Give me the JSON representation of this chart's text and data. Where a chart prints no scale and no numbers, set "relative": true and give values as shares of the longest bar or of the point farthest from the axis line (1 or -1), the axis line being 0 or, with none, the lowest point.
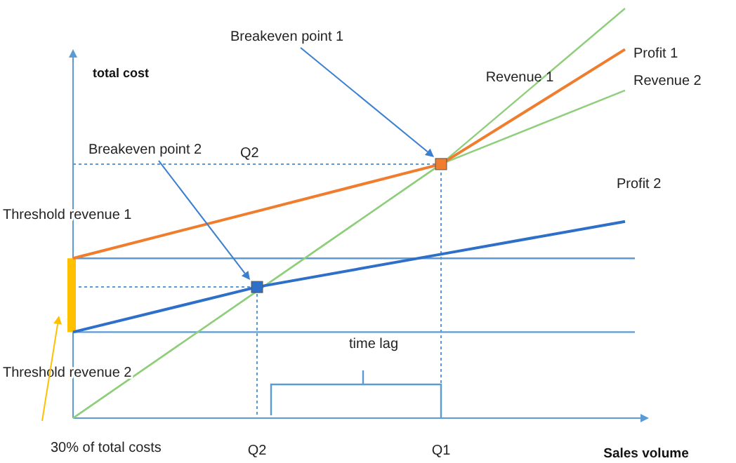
{
  "chart_data": {
    "type": "line",
    "relative": true,
    "ylabel": "total cost",
    "xlabel": "Sales volume",
    "categories": [
      null,
      "Q2",
      "Q1",
      null
    ],
    "legend": false,
    "grid": false,
    "marker": "none",
    "line_style": "solid",
    "series": [
      {
        "name": "Revenue 1",
        "color": "#8fce7a",
        "values": [
          0,
          0.31,
          0.62,
          1
        ]
      },
      {
        "name": "Revenue 2",
        "color": "#8fce7a",
        "values": [
          0,
          0.31,
          0.62,
          0.8
        ]
      },
      {
        "name": "Profit 1",
        "color": "#f07d2e",
        "values": [
          0.39,
          0.505,
          0.62,
          0.9
        ]
      },
      {
        "name": "Profit 2",
        "color": "#2e6fc9",
        "values": [
          0.21,
          0.32,
          0.4,
          0.48
        ]
      },
      {
        "type": "scatter",
        "marker": "square",
        "color": "#f07d2e",
        "values": [
          null,
          null,
          0.62,
          null
        ]
      },
      {
        "type": "scatter",
        "marker": "square",
        "color": "#2e6fc9",
        "values": [
          null,
          0.32,
          null,
          null
        ]
      }
    ],
    "ref_lines": [
      {
        "axis": "y",
        "value": 0.39,
        "label": "Threshold revenue 1",
        "color": "#5b9bd5"
      },
      {
        "axis": "y",
        "value": 0.21,
        "label": "Threshold revenue 2",
        "color": "#5b9bd5"
      }
    ],
    "annotations": [
      "Breakeven point 1",
      "Breakeven point 2",
      "Q2",
      "time lag",
      "30% of total costs"
    ]
  }
}
